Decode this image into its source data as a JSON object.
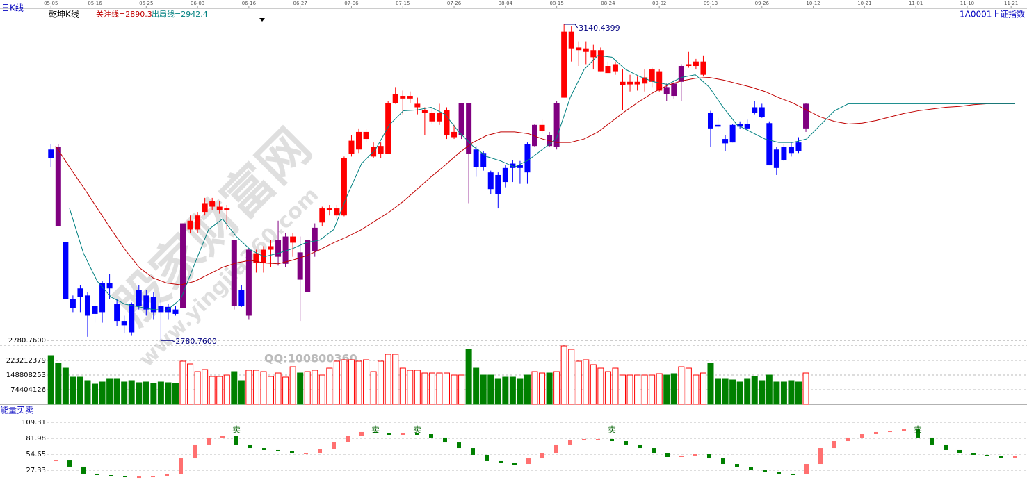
{
  "header": {
    "period": "日K线",
    "indicator": "乾坤K线",
    "code": "1A0001",
    "name": "上证指数"
  },
  "watermark": {
    "title": "股家财富网",
    "url": "www.yingjia360.com",
    "qq": "QQ:100800360"
  },
  "chart_data": [
    {
      "type": "candlestick",
      "xlim": [
        -0.5,
        132.5
      ],
      "xticks": [
        {
          "value": 0,
          "label": "05-05"
        },
        {
          "value": 6,
          "label": "05-16"
        },
        {
          "value": 13,
          "label": "05-25"
        },
        {
          "value": 20,
          "label": "06-03"
        },
        {
          "value": 27,
          "label": "06-16"
        },
        {
          "value": 34,
          "label": "06-27"
        },
        {
          "value": 41,
          "label": "07-06"
        },
        {
          "value": 48,
          "label": "07-15"
        },
        {
          "value": 55,
          "label": "07-26"
        },
        {
          "value": 62,
          "label": "08-04"
        },
        {
          "value": 69,
          "label": "08-15"
        },
        {
          "value": 76,
          "label": "08-24"
        },
        {
          "value": 83,
          "label": "09-02"
        },
        {
          "value": 90,
          "label": "09-13"
        },
        {
          "value": 97,
          "label": "09-26"
        },
        {
          "value": 104,
          "label": "10-12"
        },
        {
          "value": 111,
          "label": "10-21"
        },
        {
          "value": 118,
          "label": "11-01"
        },
        {
          "value": 125,
          "label": "11-10"
        },
        {
          "value": 131,
          "label": "11-21"
        }
      ],
      "ylim": [
        2775.4,
        3157.0
      ],
      "yticks": [
        {
          "value": 2780.76,
          "label": "2780.7600"
        }
      ],
      "up_color": "#ff0000",
      "down_color": "#0000ff",
      "signal_color": "#800080",
      "ohlc": [
        [
          2998,
          3004,
          2978,
          2988
        ],
        [
          3001,
          3004,
          2911,
          2911
        ],
        [
          2893,
          2893,
          2828,
          2828
        ],
        [
          2828,
          2832,
          2813,
          2818
        ],
        [
          2840,
          2844,
          2813,
          2830
        ],
        [
          2832,
          2836,
          2785,
          2809
        ],
        [
          2820,
          2824,
          2801,
          2811
        ],
        [
          2846,
          2848,
          2801,
          2813
        ],
        [
          2846,
          2856,
          2828,
          2840
        ],
        [
          2822,
          2828,
          2797,
          2803
        ],
        [
          2803,
          2809,
          2789,
          2798
        ],
        [
          2822,
          2824,
          2786,
          2790
        ],
        [
          2838,
          2844,
          2816,
          2820
        ],
        [
          2832,
          2838,
          2809,
          2816
        ],
        [
          2830,
          2836,
          2805,
          2813
        ],
        [
          2820,
          2827,
          2780.76,
          2813
        ],
        [
          2819,
          2822,
          2805,
          2813
        ],
        [
          2816,
          2820,
          2809,
          2811
        ],
        [
          2818,
          2914,
          2818,
          2914
        ],
        [
          2907,
          2923,
          2903,
          2917
        ],
        [
          2907,
          2927,
          2903,
          2923
        ],
        [
          2927,
          2943,
          2923,
          2937
        ],
        [
          2933,
          2943,
          2929,
          2939
        ],
        [
          2929,
          2939,
          2925,
          2933
        ],
        [
          2929,
          2935,
          2907,
          2931
        ],
        [
          2895,
          2895,
          2816,
          2820
        ],
        [
          2838,
          2844,
          2819,
          2820
        ],
        [
          2809,
          2886,
          2805,
          2884
        ],
        [
          2869,
          2884,
          2858,
          2880
        ],
        [
          2869,
          2888,
          2858,
          2884
        ],
        [
          2884,
          2895,
          2864,
          2888
        ],
        [
          2876,
          2917,
          2866,
          2895
        ],
        [
          2868,
          2903,
          2864,
          2899
        ],
        [
          2892,
          2903,
          2876,
          2899
        ],
        [
          2881,
          2899,
          2803,
          2850
        ],
        [
          2836,
          2895,
          2836,
          2895
        ],
        [
          2882,
          2914,
          2876,
          2909
        ],
        [
          2915,
          2933,
          2911,
          2931
        ],
        [
          2929,
          2935,
          2923,
          2931
        ],
        [
          2923,
          2935,
          2919,
          2931
        ],
        [
          2923,
          2990,
          2922,
          2988
        ],
        [
          2993,
          3014,
          2990,
          3008
        ],
        [
          2998,
          3022,
          2994,
          3018
        ],
        [
          3010,
          3022,
          3006,
          3018
        ],
        [
          2990,
          3006,
          2988,
          3001
        ],
        [
          2993,
          3006,
          2988,
          3002
        ],
        [
          2993,
          3053,
          2993,
          3051
        ],
        [
          3051,
          3069,
          3050,
          3061
        ],
        [
          3056,
          3065,
          3038,
          3059
        ],
        [
          3056,
          3064,
          3051,
          3059
        ],
        [
          3046,
          3057,
          3038,
          3050
        ],
        [
          3040,
          3046,
          3014,
          3043
        ],
        [
          3030,
          3046,
          3027,
          3040
        ],
        [
          3030,
          3050,
          3026,
          3040
        ],
        [
          3014,
          3046,
          3010,
          3043
        ],
        [
          3012,
          3026,
          3010,
          3018
        ],
        [
          3014,
          3051,
          3010,
          3051
        ],
        [
          3051,
          3051,
          2937,
          2993
        ],
        [
          2998,
          3002,
          2967,
          2978
        ],
        [
          2994,
          2996,
          2974,
          2978
        ],
        [
          2972,
          2974,
          2947,
          2953
        ],
        [
          2969,
          2972,
          2931,
          2947
        ],
        [
          2977,
          2980,
          2955,
          2961
        ],
        [
          2982,
          2986,
          2961,
          2977
        ],
        [
          2980,
          2985,
          2959,
          2977
        ],
        [
          3004,
          3006,
          2959,
          2972
        ],
        [
          3002,
          3027,
          3001,
          3026
        ],
        [
          3019,
          3032,
          3016,
          3026
        ],
        [
          3014,
          3018,
          3001,
          3002
        ],
        [
          3001,
          3053,
          2998,
          3051
        ],
        [
          3057,
          3140.44,
          3057,
          3132
        ],
        [
          3113,
          3138,
          3098,
          3132
        ],
        [
          3111,
          3121,
          3093,
          3114
        ],
        [
          3109,
          3121,
          3095,
          3113
        ],
        [
          3103,
          3117,
          3089,
          3111
        ],
        [
          3087,
          3114,
          3087,
          3111
        ],
        [
          3085,
          3098,
          3085,
          3093
        ],
        [
          3087,
          3098,
          3083,
          3095
        ],
        [
          3071,
          3089,
          3043,
          3075
        ],
        [
          3072,
          3083,
          3064,
          3075
        ],
        [
          3072,
          3081,
          3065,
          3075
        ],
        [
          3073,
          3089,
          3064,
          3080
        ],
        [
          3075,
          3091,
          3069,
          3089
        ],
        [
          3065,
          3089,
          3064,
          3087
        ],
        [
          3069,
          3073,
          3053,
          3061
        ],
        [
          3073,
          3077,
          3056,
          3059
        ],
        [
          3075,
          3095,
          3053,
          3093
        ],
        [
          3093,
          3109,
          3091,
          3095
        ],
        [
          3093,
          3101,
          3089,
          3098
        ],
        [
          3083,
          3105,
          3081,
          3098
        ],
        [
          3040,
          3042,
          3001,
          3022
        ],
        [
          3026,
          3034,
          3022,
          3024
        ],
        [
          3010,
          3014,
          2996,
          3005
        ],
        [
          3026,
          3027,
          3006,
          3006
        ],
        [
          3027,
          3030,
          3022,
          3024
        ],
        [
          3027,
          3032,
          3019,
          3022
        ],
        [
          3046,
          3053,
          3038,
          3040
        ],
        [
          3046,
          3050,
          3034,
          3035
        ],
        [
          3028,
          3030,
          2980,
          2980
        ],
        [
          2998,
          3001,
          2969,
          2977
        ],
        [
          3001,
          3004,
          2985,
          2986
        ],
        [
          3001,
          3006,
          2990,
          2994
        ],
        [
          3006,
          3012,
          2994,
          2996
        ],
        [
          3022,
          3051,
          3018,
          3050
        ]
      ],
      "signal_days": [
        1,
        18,
        25,
        27,
        31,
        32,
        34,
        35,
        36,
        56,
        57,
        66,
        68,
        69,
        84,
        85,
        86,
        103
      ],
      "annotations": [
        {
          "text": "3140.4399",
          "index": 70,
          "value": 3140.44
        },
        {
          "text": "2780.7600",
          "index": 15,
          "value": 2780.76
        }
      ],
      "series": [
        {
          "name": "关注线=2890.3",
          "color": "#c00000",
          "values": [
            3002,
            2978,
            2955,
            2931,
            2907,
            2884,
            2864,
            2852,
            2846,
            2844,
            2848,
            2856,
            2864,
            2869,
            2872,
            2869,
            2868,
            2872,
            2877,
            2884,
            2892,
            2899,
            2907,
            2917,
            2927,
            2939,
            2953,
            2967,
            2980,
            2994,
            3006,
            3014,
            3018,
            3018,
            3016,
            3010,
            3006,
            3006,
            3010,
            3018,
            3030,
            3042,
            3053,
            3063,
            3071,
            3076,
            3079,
            3080,
            3077,
            3073,
            3069,
            3064,
            3057,
            3051,
            3043,
            3035,
            3030,
            3027,
            3028,
            3031,
            3035,
            3039,
            3042,
            3044,
            3046,
            3047,
            3049,
            3050,
            3050,
            3050
          ]
        },
        {
          "name": "出局线=2942.4",
          "color": "#008080",
          "values": [
            null,
            2931,
            2880,
            2848,
            2830,
            2822,
            2819,
            2816,
            2815,
            2828,
            2868,
            2907,
            2919,
            2899,
            2884,
            2876,
            2880,
            2885,
            2892,
            2895,
            2907,
            2947,
            2982,
            2998,
            3026,
            3042,
            3043,
            3046,
            3038,
            3018,
            3002,
            2990,
            2985,
            2978,
            2986,
            2998,
            3010,
            3057,
            3089,
            3105,
            3103,
            3089,
            3081,
            3075,
            3072,
            3080,
            3083,
            3069,
            3046,
            3026,
            3018,
            3010,
            3006,
            3006,
            3010,
            3026,
            3042,
            3050,
            3050,
            3050,
            3050,
            3050,
            3050,
            3050,
            3050,
            3050,
            3050,
            3050,
            3050,
            3050
          ]
        }
      ]
    },
    {
      "type": "bar",
      "ylim": [
        0,
        301200000
      ],
      "yticks": [
        74404126,
        148808253,
        223212379
      ],
      "up_color": "#ff0000",
      "down_color": "#008000",
      "values": [
        248000000,
        209000000,
        184200000,
        138200000,
        138200000,
        120500000,
        102700000,
        113400000,
        131100000,
        131100000,
        113400000,
        120500000,
        109800000,
        113400000,
        106300000,
        113400000,
        109800000,
        106300000,
        219700000,
        205500000,
        166500000,
        177200000,
        141700000,
        141700000,
        148800000,
        166500000,
        120500000,
        173600000,
        173600000,
        166500000,
        141700000,
        159400000,
        138200000,
        191300000,
        159400000,
        166500000,
        173600000,
        148800000,
        184200000,
        219700000,
        226800000,
        226800000,
        219700000,
        226800000,
        166500000,
        219700000,
        255100000,
        255100000,
        184200000,
        173600000,
        173600000,
        159400000,
        159400000,
        159400000,
        159400000,
        148800000,
        148800000,
        279900000,
        184200000,
        148800000,
        148800000,
        131100000,
        138200000,
        138200000,
        131100000,
        148800000,
        166500000,
        159400000,
        159400000,
        166500000,
        297600000,
        279900000,
        219700000,
        226800000,
        202000000,
        184200000,
        166500000,
        184200000,
        148800000,
        148800000,
        148800000,
        148800000,
        148800000,
        155900000,
        148800000,
        155900000,
        191300000,
        184200000,
        148800000,
        159400000,
        209000000,
        131100000,
        131100000,
        124000000,
        113400000,
        131100000,
        141700000,
        120500000,
        148800000,
        113400000,
        113400000,
        120500000,
        113400000,
        159400000
      ]
    },
    {
      "type": "segment",
      "title": "能量买卖",
      "ylim": [
        0,
        118.8
      ],
      "yticks": [
        27.33,
        54.65,
        81.98,
        109.31
      ],
      "up_color": "#ff7070",
      "down_color": "#008000",
      "values": [
        45.1,
        33.3,
        21.4,
        19.0,
        17.8,
        16.6,
        16.6,
        17.8,
        20.2,
        47.5,
        71.3,
        83.2,
        86.7,
        71.3,
        65.3,
        61.8,
        59.4,
        57.0,
        57.0,
        63.0,
        76.0,
        86.7,
        92.7,
        90.3,
        89.1,
        90.3,
        89.1,
        83.2,
        74.8,
        65.3,
        53.5,
        44.0,
        39.2,
        38.0,
        47.5,
        57.0,
        71.3,
        78.4,
        80.8,
        80.8,
        77.2,
        71.3,
        65.3,
        57.0,
        49.9,
        52.3,
        55.8,
        47.5,
        38.0,
        32.1,
        27.3,
        23.8,
        21.4,
        20.2,
        38.0,
        65.3,
        77.2,
        83.2,
        89.1,
        92.7,
        95.0,
        97.4,
        83.2,
        71.3,
        61.8,
        57.0,
        53.5,
        51.1,
        49.9,
        51.1
      ],
      "annotations": [
        {
          "text": "卖",
          "index": 13
        },
        {
          "text": "卖",
          "index": 23
        },
        {
          "text": "卖",
          "index": 26
        },
        {
          "text": "卖",
          "index": 40
        },
        {
          "text": "卖",
          "index": 62
        }
      ]
    }
  ]
}
